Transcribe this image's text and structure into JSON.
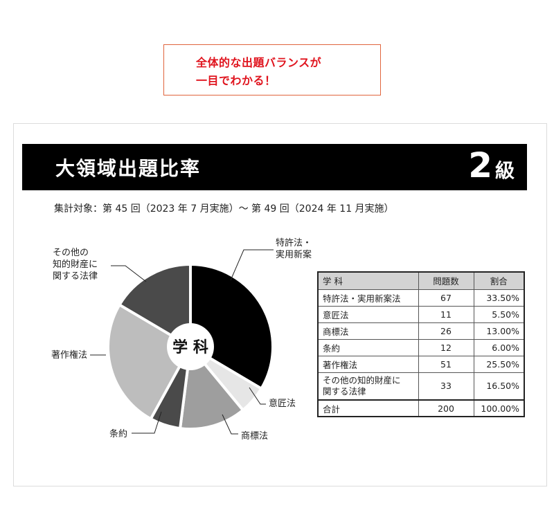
{
  "callout": {
    "line1": "全体的な出題バランスが",
    "line2": "一目でわかる！"
  },
  "header": {
    "title": "大領域出題比率",
    "grade_number": "2",
    "grade_unit": "級"
  },
  "period": "集計対象：第 45 回（2023 年 7 月実施）～ 第 49 回（2024 年 11 月実施）",
  "colors": {
    "header_bg": "#000000",
    "callout_border": "#e0643c",
    "callout_text": "#e0141e"
  },
  "chart_data": {
    "type": "pie",
    "center_label": "学 科",
    "slices": [
      {
        "label_lines": [
          "特許法・",
          "実用新案法"
        ],
        "value": 67,
        "color": "#000000"
      },
      {
        "label_lines": [
          "意匠法"
        ],
        "value": 11,
        "color": "#e6e6e6"
      },
      {
        "label_lines": [
          "商標法"
        ],
        "value": 26,
        "color": "#9e9e9e"
      },
      {
        "label_lines": [
          "条約"
        ],
        "value": 12,
        "color": "#4a4a4a"
      },
      {
        "label_lines": [
          "著作権法"
        ],
        "value": 51,
        "color": "#bdbdbd"
      },
      {
        "label_lines": [
          "その他の",
          "知的財産に",
          "関する法律"
        ],
        "value": 33,
        "color": "#4a4a4a"
      }
    ]
  },
  "table": {
    "headers": [
      "学 科",
      "問題数",
      "割合"
    ],
    "rows": [
      {
        "subject": "特許法・実用新案法",
        "count": "67",
        "ratio": "33.50%"
      },
      {
        "subject": "意匠法",
        "count": "11",
        "ratio": "5.50%"
      },
      {
        "subject": "商標法",
        "count": "26",
        "ratio": "13.00%"
      },
      {
        "subject": "条約",
        "count": "12",
        "ratio": "6.00%"
      },
      {
        "subject": "著作権法",
        "count": "51",
        "ratio": "25.50%"
      },
      {
        "subject": "その他の知的財産に\n関する法律",
        "count": "33",
        "ratio": "16.50%"
      }
    ],
    "total": {
      "subject": "合計",
      "count": "200",
      "ratio": "100.00%"
    }
  }
}
